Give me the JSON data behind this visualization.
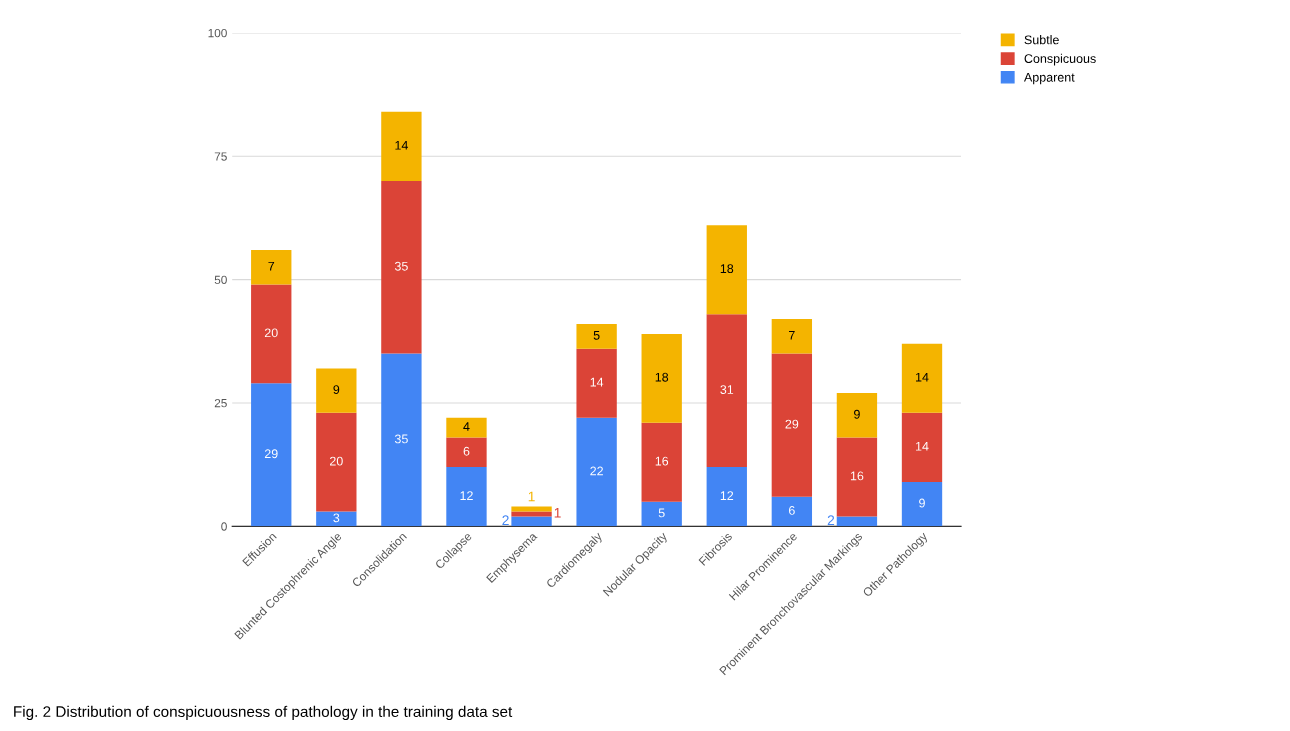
{
  "chart_data": {
    "type": "bar",
    "stacked": true,
    "categories": [
      "Effusion",
      "Blunted Costophrenic Angle",
      "Consolidation",
      "Collapse",
      "Emphysema",
      "Cardiomegaly",
      "Nodular Opacity",
      "Fibrosis",
      "Hilar Prominence",
      "Prominent Bronchovascular Markings",
      "Other Pathology"
    ],
    "series": [
      {
        "name": "Apparent",
        "color": "#4285f4",
        "values": [
          29,
          3,
          35,
          12,
          2,
          22,
          5,
          12,
          6,
          2,
          9
        ]
      },
      {
        "name": "Conspicuous",
        "color": "#db4437",
        "values": [
          20,
          20,
          35,
          6,
          1,
          14,
          16,
          31,
          29,
          16,
          14
        ]
      },
      {
        "name": "Subtle",
        "color": "#f4b400",
        "values": [
          7,
          9,
          14,
          4,
          1,
          5,
          18,
          18,
          7,
          9,
          14
        ]
      }
    ],
    "ylim": [
      0,
      100
    ],
    "yticks": [
      0,
      25,
      50,
      75,
      100
    ],
    "grid": "y",
    "legend": "top right",
    "data_labels": true,
    "annotations": [
      "Fig. 2 Distribution of conspicuousness of pathology in the training data set"
    ]
  }
}
